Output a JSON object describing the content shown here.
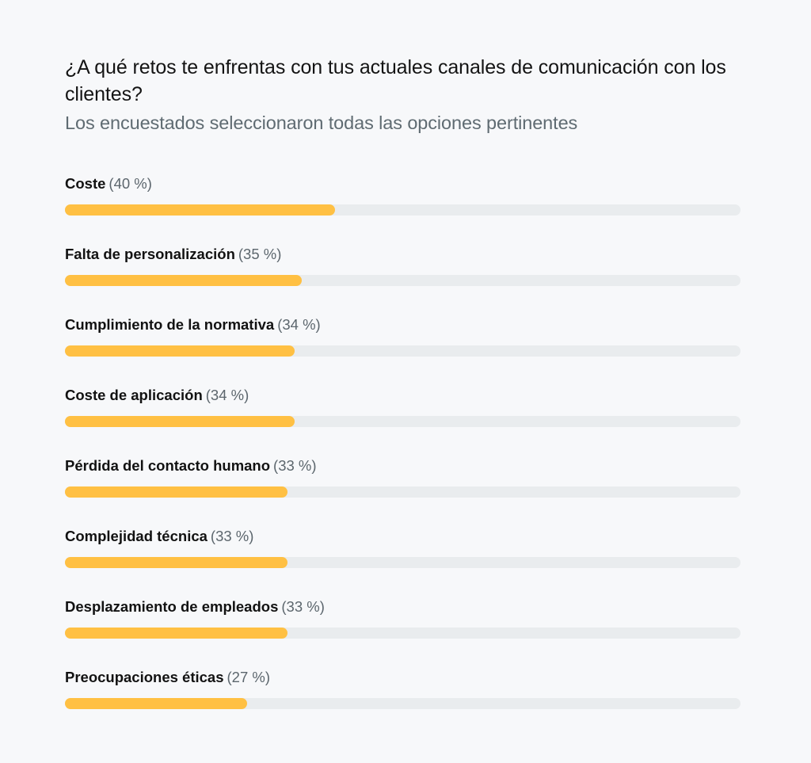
{
  "chart_data": {
    "type": "bar",
    "orientation": "horizontal",
    "title": "¿A qué retos te enfrentas con tus actuales canales de comunicación con los clientes?",
    "subtitle": "Los encuestados seleccionaron todas las opciones pertinentes",
    "categories": [
      "Coste",
      "Falta de personalización",
      "Cumplimiento de la normativa",
      "Coste de aplicación",
      "Pérdida del contacto humano",
      "Complejidad técnica",
      "Desplazamiento de empleados",
      "Preocupaciones éticas"
    ],
    "values": [
      40,
      35,
      34,
      34,
      33,
      33,
      33,
      27
    ],
    "value_labels": [
      "(40 %)",
      "(35 %)",
      "(34 %)",
      "(34 %)",
      "(33 %)",
      "(33 %)",
      "(33 %)",
      "(27 %)"
    ],
    "xlim": [
      0,
      100
    ],
    "unit": "%",
    "colors": {
      "bar": "#ffc043",
      "track": "#e9ecee",
      "subtitle": "#5f6b72",
      "percent": "#5c666d"
    }
  }
}
